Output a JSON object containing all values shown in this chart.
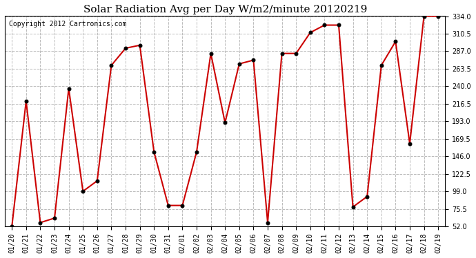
{
  "title": "Solar Radiation Avg per Day W/m2/minute 20120219",
  "copyright": "Copyright 2012 Cartronics.com",
  "dates": [
    "01/20",
    "01/21",
    "01/22",
    "01/23",
    "01/24",
    "01/25",
    "01/26",
    "01/27",
    "01/28",
    "01/29",
    "01/30",
    "01/31",
    "02/01",
    "02/02",
    "02/03",
    "02/04",
    "02/05",
    "02/06",
    "02/07",
    "02/08",
    "02/09",
    "02/10",
    "02/11",
    "02/12",
    "02/13",
    "02/14",
    "02/15",
    "02/16",
    "02/17",
    "02/18",
    "02/19"
  ],
  "values": [
    52.0,
    220.0,
    57.0,
    63.0,
    237.0,
    99.0,
    113.0,
    268.0,
    291.0,
    295.0,
    152.0,
    80.0,
    80.0,
    152.0,
    284.0,
    191.0,
    270.0,
    275.0,
    57.0,
    284.0,
    284.0,
    312.0,
    322.0,
    322.0,
    78.0,
    92.0,
    268.0,
    300.0,
    163.0,
    334.0,
    334.0
  ],
  "ylim": [
    52.0,
    334.0
  ],
  "yticks": [
    52.0,
    75.5,
    99.0,
    122.5,
    146.0,
    169.5,
    193.0,
    216.5,
    240.0,
    263.5,
    287.0,
    310.5,
    334.0
  ],
  "line_color": "#cc0000",
  "marker_color": "#cc0000",
  "bg_color": "#ffffff",
  "plot_bg_color": "#ffffff",
  "grid_color": "#bbbbbb",
  "title_fontsize": 11,
  "tick_fontsize": 7,
  "copyright_fontsize": 7,
  "figwidth": 6.9,
  "figheight": 3.75,
  "dpi": 100
}
